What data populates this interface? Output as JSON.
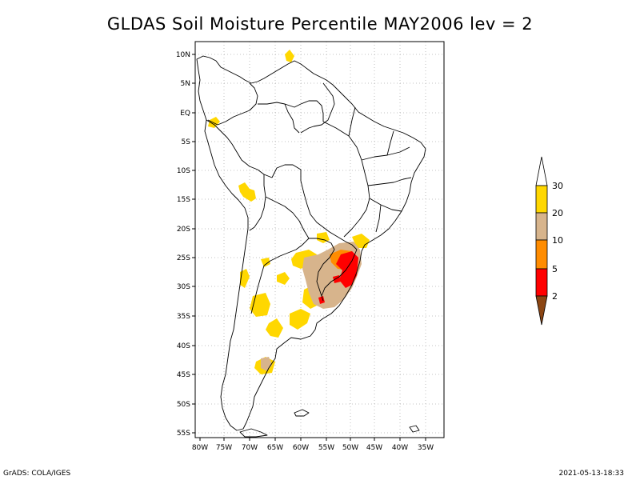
{
  "title": "GLDAS Soil Moisture Percentile MAY2006 lev = 2",
  "footer": {
    "left": "GrADS: COLA/IGES",
    "right": "2021-05-13-18:33"
  },
  "map": {
    "lat_labels": [
      "10N",
      "5N",
      "EQ",
      "5S",
      "10S",
      "15S",
      "20S",
      "25S",
      "30S",
      "35S",
      "40S",
      "45S",
      "50S",
      "55S"
    ],
    "lon_labels": [
      "80W",
      "75W",
      "70W",
      "65W",
      "60W",
      "55W",
      "50W",
      "45W",
      "40W",
      "35W"
    ]
  },
  "legend": {
    "labels": [
      "30",
      "20",
      "10",
      "5",
      "2"
    ],
    "colors": {
      "above_30": "#ffffff",
      "20_30": "#ffd700",
      "10_20": "#d7b48c",
      "5_10": "#ff8c00",
      "2_5": "#ff0000",
      "below_2": "#8b4513"
    }
  }
}
